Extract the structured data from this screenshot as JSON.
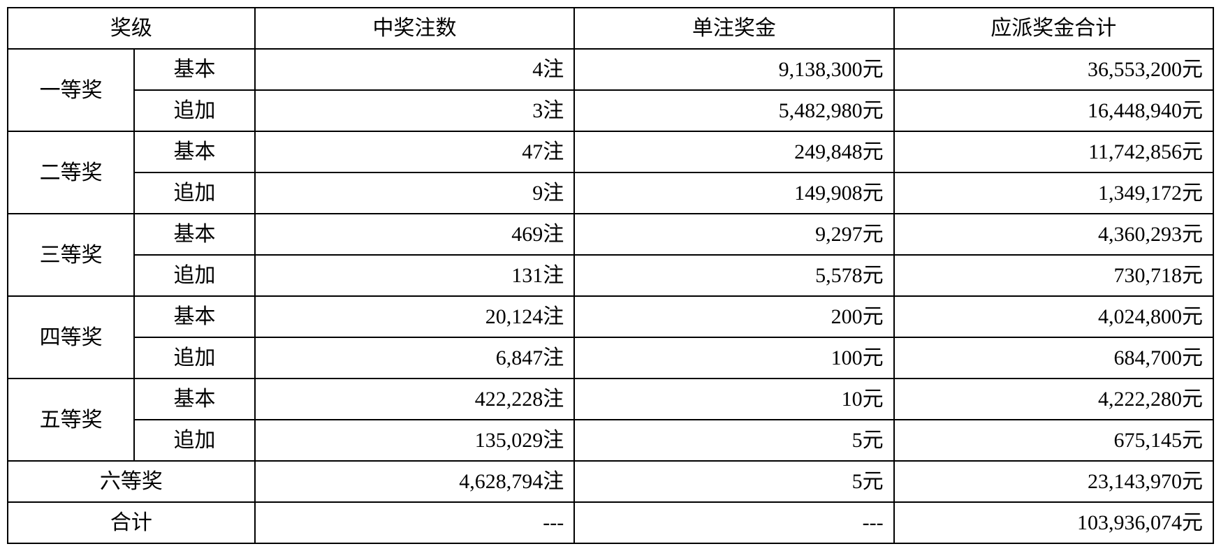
{
  "table": {
    "type": "table",
    "border_color": "#000000",
    "background_color": "#ffffff",
    "text_color": "#000000",
    "font_family": "SimSun",
    "font_size_pt": 22,
    "header": {
      "tier": "奖级",
      "count": "中奖注数",
      "unit_prize": "单注奖金",
      "total_prize": "应派奖金合计"
    },
    "columns_layout": {
      "tier_a_width_pct": 10.5,
      "tier_b_width_pct": 10,
      "count_width_pct": 26.5,
      "unit_width_pct": 26.5,
      "total_width_pct": 26.5
    },
    "tiers": [
      {
        "name": "一等奖",
        "rows": [
          {
            "sub": "基本",
            "count": "4注",
            "unit": "9,138,300元",
            "total": "36,553,200元"
          },
          {
            "sub": "追加",
            "count": "3注",
            "unit": "5,482,980元",
            "total": "16,448,940元"
          }
        ]
      },
      {
        "name": "二等奖",
        "rows": [
          {
            "sub": "基本",
            "count": "47注",
            "unit": "249,848元",
            "total": "11,742,856元"
          },
          {
            "sub": "追加",
            "count": "9注",
            "unit": "149,908元",
            "total": "1,349,172元"
          }
        ]
      },
      {
        "name": "三等奖",
        "rows": [
          {
            "sub": "基本",
            "count": "469注",
            "unit": "9,297元",
            "total": "4,360,293元"
          },
          {
            "sub": "追加",
            "count": "131注",
            "unit": "5,578元",
            "total": "730,718元"
          }
        ]
      },
      {
        "name": "四等奖",
        "rows": [
          {
            "sub": "基本",
            "count": "20,124注",
            "unit": "200元",
            "total": "4,024,800元"
          },
          {
            "sub": "追加",
            "count": "6,847注",
            "unit": "100元",
            "total": "684,700元"
          }
        ]
      },
      {
        "name": "五等奖",
        "rows": [
          {
            "sub": "基本",
            "count": "422,228注",
            "unit": "10元",
            "total": "4,222,280元"
          },
          {
            "sub": "追加",
            "count": "135,029注",
            "unit": "5元",
            "total": "675,145元"
          }
        ]
      }
    ],
    "sixth": {
      "name": "六等奖",
      "count": "4,628,794注",
      "unit": "5元",
      "total": "23,143,970元"
    },
    "total_row": {
      "name": "合计",
      "count": "---",
      "unit": "---",
      "total": "103,936,074元"
    }
  }
}
